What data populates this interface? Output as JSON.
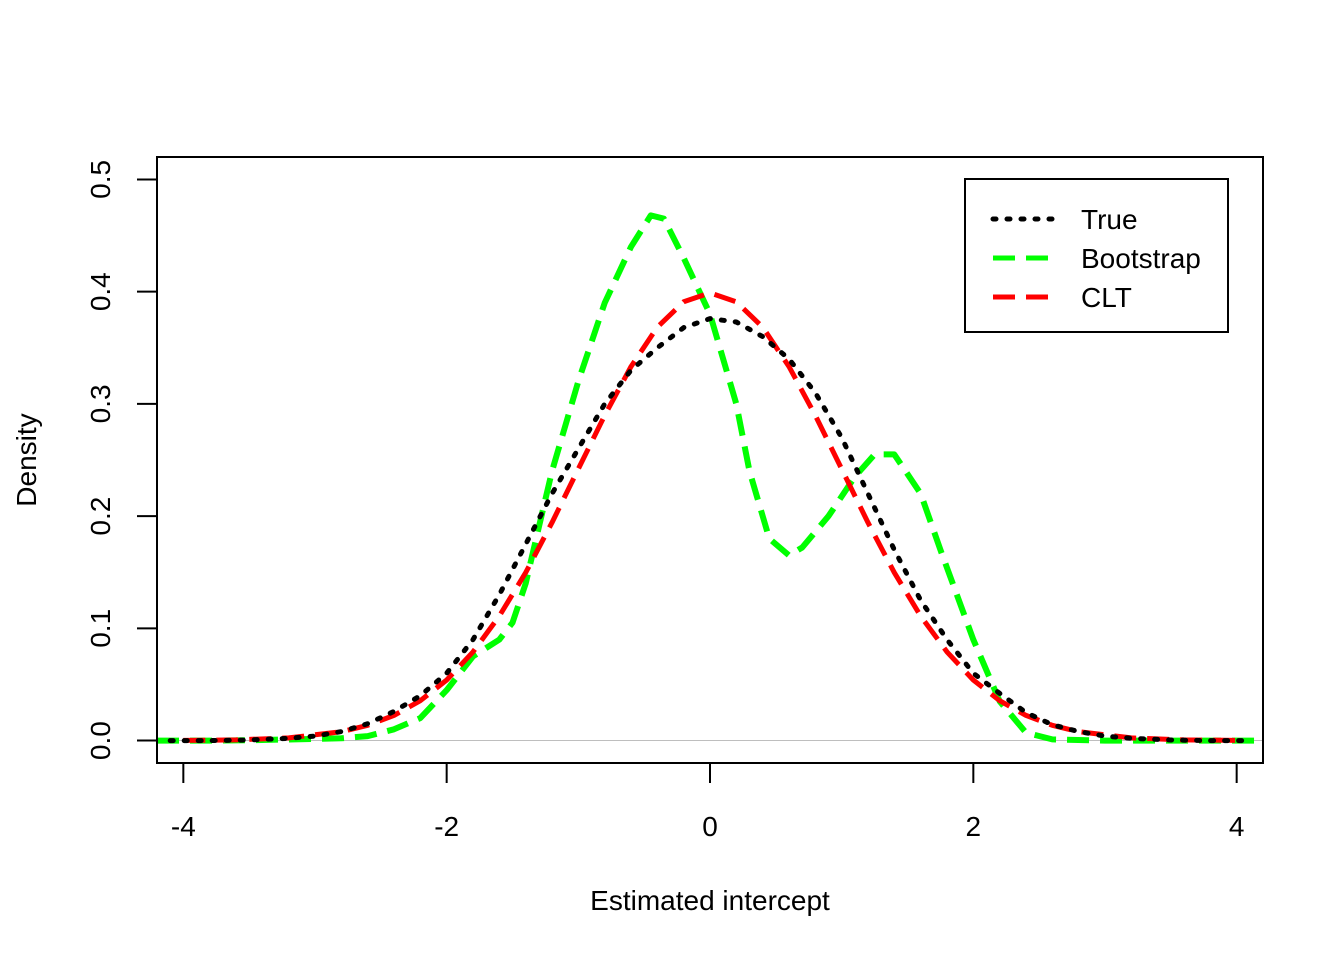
{
  "chart_data": {
    "type": "line",
    "title": "",
    "xlabel": "Estimated intercept",
    "ylabel": "Density",
    "xlim": [
      -4.2,
      4.2
    ],
    "ylim": [
      -0.02,
      0.52
    ],
    "x_ticks": [
      -4,
      -2,
      0,
      2,
      4
    ],
    "x_tick_labels": [
      "-4",
      "-2",
      "0",
      "2",
      "4"
    ],
    "y_ticks": [
      0.0,
      0.1,
      0.2,
      0.3,
      0.4,
      0.5
    ],
    "y_tick_labels": [
      "0.0",
      "0.1",
      "0.2",
      "0.3",
      "0.4",
      "0.5"
    ],
    "grid": false,
    "reference_line": {
      "y": 0,
      "color": "#bebebe"
    },
    "legend": {
      "position": "top-right",
      "entries": [
        "True",
        "Bootstrap",
        "CLT"
      ]
    },
    "series": [
      {
        "name": "True",
        "color": "#000000",
        "linestyle": "dotted",
        "x": [
          -4.1,
          -3.8,
          -3.5,
          -3.2,
          -3.0,
          -2.8,
          -2.6,
          -2.4,
          -2.2,
          -2.0,
          -1.8,
          -1.6,
          -1.4,
          -1.2,
          -1.0,
          -0.8,
          -0.6,
          -0.4,
          -0.2,
          0.0,
          0.2,
          0.4,
          0.6,
          0.8,
          1.0,
          1.2,
          1.4,
          1.6,
          1.8,
          2.0,
          2.2,
          2.4,
          2.6,
          2.8,
          3.0,
          3.2,
          3.5,
          3.8,
          4.1
        ],
        "y": [
          0.0,
          0.0,
          0.0005,
          0.002,
          0.004,
          0.008,
          0.015,
          0.026,
          0.04,
          0.06,
          0.09,
          0.13,
          0.175,
          0.22,
          0.26,
          0.3,
          0.33,
          0.35,
          0.368,
          0.376,
          0.373,
          0.36,
          0.34,
          0.31,
          0.27,
          0.22,
          0.17,
          0.125,
          0.09,
          0.06,
          0.042,
          0.025,
          0.014,
          0.008,
          0.004,
          0.002,
          0.0005,
          0.0,
          0.0
        ]
      },
      {
        "name": "Bootstrap",
        "color": "#00ff00",
        "linestyle": "dashed",
        "x": [
          -4.2,
          -3.8,
          -3.4,
          -3.0,
          -2.8,
          -2.6,
          -2.4,
          -2.2,
          -2.0,
          -1.8,
          -1.6,
          -1.5,
          -1.4,
          -1.3,
          -1.2,
          -1.0,
          -0.8,
          -0.6,
          -0.45,
          -0.35,
          -0.2,
          0.0,
          0.2,
          0.3,
          0.45,
          0.6,
          0.7,
          0.9,
          1.1,
          1.25,
          1.4,
          1.6,
          1.75,
          2.0,
          2.2,
          2.4,
          2.6,
          3.0,
          3.5,
          4.2
        ],
        "y": [
          0.0,
          0.0,
          0.0005,
          0.0015,
          0.002,
          0.004,
          0.01,
          0.02,
          0.045,
          0.075,
          0.09,
          0.105,
          0.14,
          0.19,
          0.24,
          0.32,
          0.39,
          0.44,
          0.468,
          0.465,
          0.43,
          0.38,
          0.3,
          0.24,
          0.18,
          0.165,
          0.172,
          0.2,
          0.235,
          0.255,
          0.255,
          0.22,
          0.17,
          0.09,
          0.035,
          0.007,
          0.001,
          0.0,
          0.0,
          0.0
        ]
      },
      {
        "name": "CLT",
        "color": "#ff0000",
        "linestyle": "dashed",
        "x": [
          -4.0,
          -3.6,
          -3.2,
          -2.8,
          -2.6,
          -2.4,
          -2.2,
          -2.0,
          -1.8,
          -1.6,
          -1.4,
          -1.2,
          -1.0,
          -0.8,
          -0.6,
          -0.4,
          -0.2,
          0.0,
          0.2,
          0.4,
          0.6,
          0.8,
          1.0,
          1.2,
          1.4,
          1.6,
          1.8,
          2.0,
          2.2,
          2.4,
          2.6,
          2.8,
          3.2,
          3.6,
          4.0
        ],
        "y": [
          0.0001,
          0.0006,
          0.0024,
          0.0079,
          0.0136,
          0.0224,
          0.0355,
          0.054,
          0.079,
          0.1109,
          0.1497,
          0.1942,
          0.242,
          0.2897,
          0.3332,
          0.3683,
          0.391,
          0.3989,
          0.391,
          0.3683,
          0.3332,
          0.2897,
          0.242,
          0.1942,
          0.1497,
          0.1109,
          0.079,
          0.054,
          0.0355,
          0.0224,
          0.0136,
          0.0079,
          0.0024,
          0.0006,
          0.0001
        ]
      }
    ]
  }
}
